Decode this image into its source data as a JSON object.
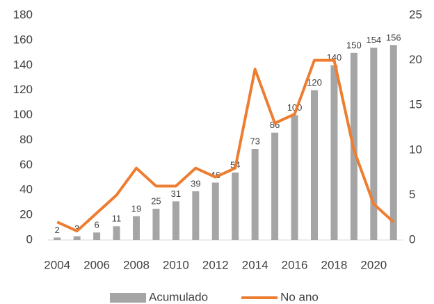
{
  "chart_data": {
    "type": "bar-line",
    "categories": [
      2004,
      null,
      2006,
      null,
      2008,
      null,
      2010,
      null,
      2012,
      null,
      2014,
      null,
      2016,
      null,
      2018,
      null,
      2020,
      null
    ],
    "series": [
      {
        "name": "Acumulado",
        "type": "bar",
        "color": "#a5a5a5",
        "axis": "y",
        "values": [
          2,
          3,
          6,
          11,
          19,
          25,
          31,
          39,
          46,
          54,
          73,
          86,
          100,
          120,
          140,
          150,
          154,
          156
        ]
      },
      {
        "name": "No ano",
        "type": "line",
        "color": "#ed7d31",
        "axis": "y2",
        "values": [
          2,
          1,
          3,
          5,
          8,
          6,
          6,
          8,
          7,
          8,
          19,
          13,
          14,
          20,
          20,
          10,
          4,
          2
        ]
      }
    ],
    "ylim": [
      0,
      180
    ],
    "yticks": [
      0,
      20,
      40,
      60,
      80,
      100,
      120,
      140,
      160,
      180
    ],
    "y2lim": [
      0,
      25
    ],
    "y2ticks": [
      0,
      5,
      10,
      15,
      20,
      25
    ],
    "grid": false,
    "legend": "bottom"
  }
}
